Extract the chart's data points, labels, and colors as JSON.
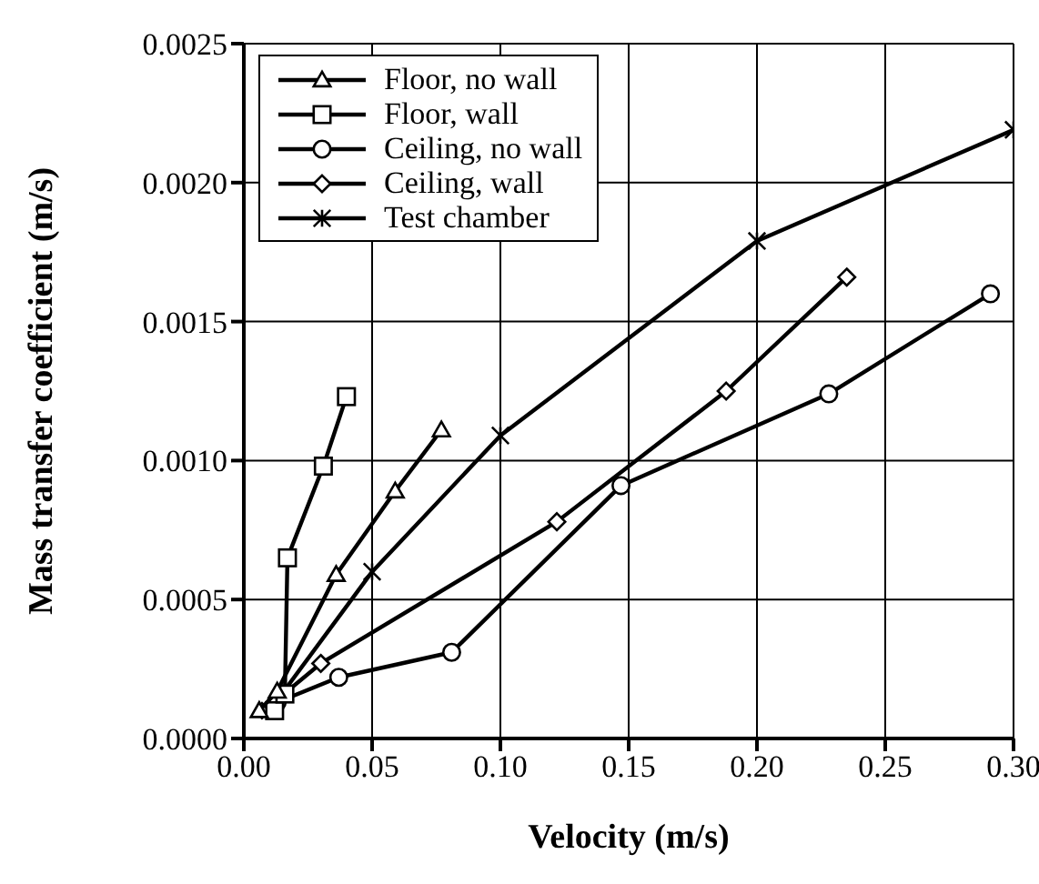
{
  "chart_data": {
    "type": "line",
    "xlabel": "Velocity (m/s)",
    "ylabel": "Mass transfer coefficient (m/s)",
    "xlim": [
      0,
      0.3
    ],
    "ylim": [
      0,
      0.0025
    ],
    "xticks": [
      {
        "value": 0,
        "label": "0.00"
      },
      {
        "value": 0.05,
        "label": "0.05"
      },
      {
        "value": 0.1,
        "label": "0.10"
      },
      {
        "value": 0.15,
        "label": "0.15"
      },
      {
        "value": 0.2,
        "label": "0.20"
      },
      {
        "value": 0.25,
        "label": "0.25"
      },
      {
        "value": 0.3,
        "label": "0.30"
      }
    ],
    "yticks": [
      {
        "value": 0,
        "label": "0.0000"
      },
      {
        "value": 0.0005,
        "label": "0.0005"
      },
      {
        "value": 0.001,
        "label": "0.0010"
      },
      {
        "value": 0.0015,
        "label": "0.0015"
      },
      {
        "value": 0.002,
        "label": "0.0020"
      },
      {
        "value": 0.0025,
        "label": "0.0025"
      }
    ],
    "grid": true,
    "legend": "top left",
    "line_style": "solid",
    "series": [
      {
        "name": "Floor, no wall",
        "color": "#000000",
        "marker": "triangle",
        "x": [
          0.006,
          0.013,
          0.036,
          0.059,
          0.077
        ],
        "values": [
          0.0001,
          0.00017,
          0.00059,
          0.00089,
          0.00111
        ]
      },
      {
        "name": "Floor, wall",
        "color": "#000000",
        "marker": "square",
        "x": [
          0.012,
          0.016,
          0.017,
          0.031,
          0.04
        ],
        "values": [
          0.0001,
          0.00016,
          0.00065,
          0.00098,
          0.00123
        ]
      },
      {
        "name": "Ceiling, no wall",
        "color": "#000000",
        "marker": "circle",
        "x": [
          0.013,
          0.037,
          0.081,
          0.147,
          0.228,
          0.291
        ],
        "values": [
          0.00013,
          0.00022,
          0.00031,
          0.00091,
          0.00124,
          0.0016
        ]
      },
      {
        "name": "Ceiling, wall",
        "color": "#000000",
        "marker": "diamond",
        "x": [
          0.013,
          0.03,
          0.122,
          0.188,
          0.235
        ],
        "values": [
          0.00014,
          0.00027,
          0.00078,
          0.00125,
          0.00166
        ]
      },
      {
        "name": "Test chamber",
        "color": "#000000",
        "marker": "cross",
        "x": [
          0.01,
          0.05,
          0.1,
          0.2,
          0.3
        ],
        "values": [
          0.0001,
          0.0006,
          0.00109,
          0.00179,
          0.00219
        ]
      }
    ]
  }
}
